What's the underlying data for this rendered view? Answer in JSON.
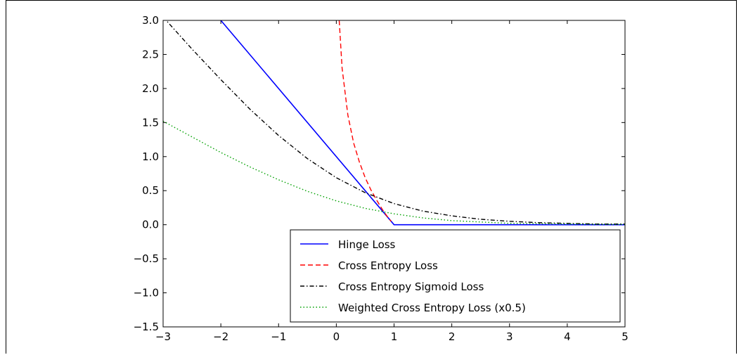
{
  "chart_data": {
    "type": "line",
    "xlim": [
      -3,
      5
    ],
    "ylim": [
      -1.5,
      3.0
    ],
    "x_ticks": [
      {
        "value": -3,
        "label": "−3"
      },
      {
        "value": -2,
        "label": "−2"
      },
      {
        "value": -1,
        "label": "−1"
      },
      {
        "value": 0,
        "label": "0"
      },
      {
        "value": 1,
        "label": "1"
      },
      {
        "value": 2,
        "label": "2"
      },
      {
        "value": 3,
        "label": "3"
      },
      {
        "value": 4,
        "label": "4"
      },
      {
        "value": 5,
        "label": "5"
      }
    ],
    "y_ticks": [
      {
        "value": 3.0,
        "label": "3.0"
      },
      {
        "value": 2.5,
        "label": "2.5"
      },
      {
        "value": 2.0,
        "label": "2.0"
      },
      {
        "value": 1.5,
        "label": "1.5"
      },
      {
        "value": 1.0,
        "label": "1.0"
      },
      {
        "value": 0.5,
        "label": "0.5"
      },
      {
        "value": 0.0,
        "label": "0.0"
      },
      {
        "value": -0.5,
        "label": "−0.5"
      },
      {
        "value": -1.0,
        "label": "−1.0"
      },
      {
        "value": -1.5,
        "label": "−1.5"
      }
    ],
    "grid": false,
    "legend_position": "lower-right",
    "series": [
      {
        "name": "Hinge Loss",
        "color": "#0000ff",
        "dash": "solid",
        "x": [
          -2.0,
          1.0,
          5.0
        ],
        "y": [
          3.0,
          0.0,
          0.0
        ]
      },
      {
        "name": "Cross Entropy Loss",
        "color": "#ff0000",
        "dash": "dashed",
        "x": [
          0.05,
          0.1,
          0.2,
          0.3,
          0.4,
          0.5,
          0.6,
          0.7,
          0.8,
          0.9,
          0.95
        ],
        "y": [
          3.0,
          2.3,
          1.61,
          1.2,
          0.92,
          0.69,
          0.51,
          0.36,
          0.22,
          0.1,
          0.05
        ]
      },
      {
        "name": "Cross Entropy Sigmoid Loss",
        "color": "#000000",
        "dash": "dashdot",
        "x": [
          -3,
          -2.5,
          -2,
          -1.5,
          -1,
          -0.5,
          0,
          0.5,
          1,
          1.5,
          2,
          2.5,
          3,
          3.5,
          4,
          4.5,
          5
        ],
        "y": [
          3.05,
          2.58,
          2.13,
          1.7,
          1.31,
          0.97,
          0.69,
          0.47,
          0.31,
          0.2,
          0.13,
          0.08,
          0.05,
          0.03,
          0.02,
          0.01,
          0.01
        ]
      },
      {
        "name": "Weighted Cross Entropy Loss (x0.5)",
        "color": "#00a000",
        "dash": "dotted",
        "x": [
          -3,
          -2.5,
          -2,
          -1.5,
          -1,
          -0.5,
          0,
          0.5,
          1,
          1.5,
          2,
          2.5,
          3,
          3.5,
          4,
          4.5,
          5
        ],
        "y": [
          1.52,
          1.29,
          1.06,
          0.85,
          0.66,
          0.49,
          0.35,
          0.24,
          0.16,
          0.1,
          0.06,
          0.04,
          0.02,
          0.015,
          0.01,
          0.005,
          0.003
        ]
      }
    ]
  }
}
